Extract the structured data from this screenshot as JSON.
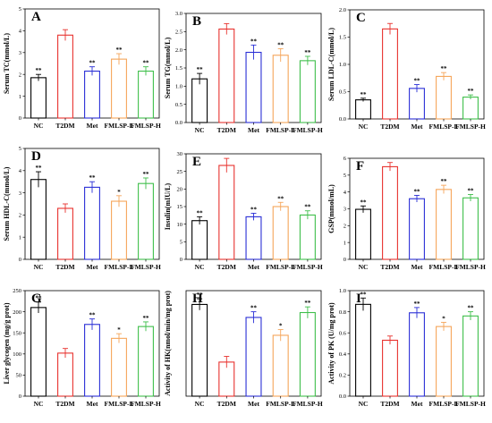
{
  "chart_data": [
    {
      "type": "bar",
      "panel": "A",
      "categories": [
        "NC",
        "T2DM",
        "Met",
        "FMLSP-L",
        "FMLSP-H"
      ],
      "values": [
        1.85,
        3.8,
        2.15,
        2.7,
        2.15
      ],
      "errors": [
        0.15,
        0.25,
        0.2,
        0.25,
        0.2
      ],
      "significance": [
        "**",
        "",
        "**",
        "**",
        "**"
      ],
      "ylabel": "Serum TC(mmol/L)",
      "ylim": [
        0,
        5
      ],
      "yticks": [
        "0",
        "1",
        "2",
        "3",
        "4",
        "5"
      ]
    },
    {
      "type": "bar",
      "panel": "B",
      "categories": [
        "NC",
        "T2DM",
        "Met",
        "FMLSP-L",
        "FMLSP-H"
      ],
      "values": [
        1.2,
        2.57,
        1.93,
        1.85,
        1.7
      ],
      "errors": [
        0.15,
        0.15,
        0.2,
        0.18,
        0.12
      ],
      "significance": [
        "**",
        "",
        "**",
        "**",
        "**"
      ],
      "ylabel": "Serum TG(mmol/L)",
      "ylim": [
        0,
        3
      ],
      "yticks": [
        "0.0",
        "0.5",
        "1.0",
        "1.5",
        "2.0",
        "2.5",
        "3.0"
      ]
    },
    {
      "type": "bar",
      "panel": "C",
      "categories": [
        "NC",
        "T2DM",
        "Met",
        "FMLSP-L",
        "FMLSP-H"
      ],
      "values": [
        0.35,
        1.65,
        0.56,
        0.78,
        0.4
      ],
      "errors": [
        0.03,
        0.1,
        0.07,
        0.07,
        0.04
      ],
      "significance": [
        "**",
        "",
        "**",
        "**",
        "**"
      ],
      "ylabel": "Serum LDL-C(mmol/L)",
      "ylim": [
        0,
        2
      ],
      "yticks": [
        "0.0",
        "0.5",
        "1.0",
        "1.5",
        "2.0"
      ]
    },
    {
      "type": "bar",
      "panel": "D",
      "categories": [
        "NC",
        "T2DM",
        "Met",
        "FMLSP-L",
        "FMLSP-H"
      ],
      "values": [
        3.6,
        2.3,
        3.25,
        2.62,
        3.42
      ],
      "errors": [
        0.35,
        0.2,
        0.25,
        0.25,
        0.25
      ],
      "significance": [
        "**",
        "",
        "**",
        "*",
        "**"
      ],
      "ylabel": "Serum HDL-C(mmol/L)",
      "ylim": [
        0,
        5
      ],
      "yticks": [
        "0",
        "1",
        "2",
        "3",
        "4",
        "5"
      ]
    },
    {
      "type": "bar",
      "panel": "E",
      "categories": [
        "NC",
        "T2DM",
        "Met",
        "FMLSP-L",
        "FMLSP-H"
      ],
      "values": [
        11,
        26.7,
        12.1,
        15,
        12.6
      ],
      "errors": [
        1.1,
        2.0,
        1.0,
        1.2,
        1.2
      ],
      "significance": [
        "**",
        "",
        "**",
        "**",
        "**"
      ],
      "ylabel": "Insulin(mIU/L)",
      "ylim": [
        0,
        30
      ],
      "yticks": [
        "0",
        "5",
        "10",
        "15",
        "20",
        "25",
        "30"
      ]
    },
    {
      "type": "bar",
      "panel": "F",
      "categories": [
        "NC",
        "T2DM",
        "Met",
        "FMLSP-L",
        "FMLSP-H"
      ],
      "values": [
        2.97,
        5.5,
        3.6,
        4.15,
        3.65
      ],
      "errors": [
        0.2,
        0.25,
        0.2,
        0.25,
        0.2
      ],
      "significance": [
        "**",
        "",
        "**",
        "**",
        "**"
      ],
      "ylabel": "GSP(mmol/mL)",
      "ylim": [
        0,
        6
      ],
      "yticks": [
        "0",
        "1",
        "2",
        "3",
        "4",
        "5",
        "6"
      ]
    },
    {
      "type": "bar",
      "panel": "G",
      "categories": [
        "NC",
        "T2DM",
        "Met",
        "FMLSP-L",
        "FMLSP-H"
      ],
      "values": [
        210,
        102,
        170,
        137,
        165
      ],
      "errors": [
        13,
        11,
        13,
        11,
        11
      ],
      "significance": [
        "**",
        "",
        "**",
        "*",
        "**"
      ],
      "ylabel": "Liver glycogen (mg/g prot)",
      "ylim": [
        0,
        250
      ],
      "yticks": [
        "0",
        "50",
        "100",
        "150",
        "200",
        "250"
      ]
    },
    {
      "type": "bar",
      "panel": "H",
      "categories": [
        "NC",
        "T2DM",
        "Met",
        "FMLSP-L",
        "FMLSP-H"
      ],
      "values": [
        1.93,
        1.22,
        1.77,
        1.55,
        1.83
      ],
      "errors": [
        0.07,
        0.07,
        0.07,
        0.07,
        0.07
      ],
      "significance": [
        "**",
        "",
        "**",
        "*",
        "**"
      ],
      "ylabel": "Activity of HK(nmol/min/mg prot)",
      "ylim": [
        0.8,
        2.1
      ],
      "yticks": []
    },
    {
      "type": "bar",
      "panel": "I",
      "categories": [
        "NC",
        "T2DM",
        "Met",
        "FMLSP-L",
        "FMLSP-H"
      ],
      "values": [
        0.87,
        0.53,
        0.79,
        0.66,
        0.76
      ],
      "errors": [
        0.06,
        0.04,
        0.05,
        0.04,
        0.04
      ],
      "significance": [
        "**",
        "",
        "**",
        "*",
        "**"
      ],
      "ylabel": "Activity of PK (U/mg prot)",
      "ylim": [
        0,
        1.0
      ],
      "yticks": [
        "0.0",
        "0.2",
        "0.4",
        "0.6",
        "0.8",
        "1.0"
      ]
    }
  ],
  "bar_colors": [
    "#000000",
    "#e8322e",
    "#2a2fd6",
    "#f5a55a",
    "#3fbf4b"
  ]
}
